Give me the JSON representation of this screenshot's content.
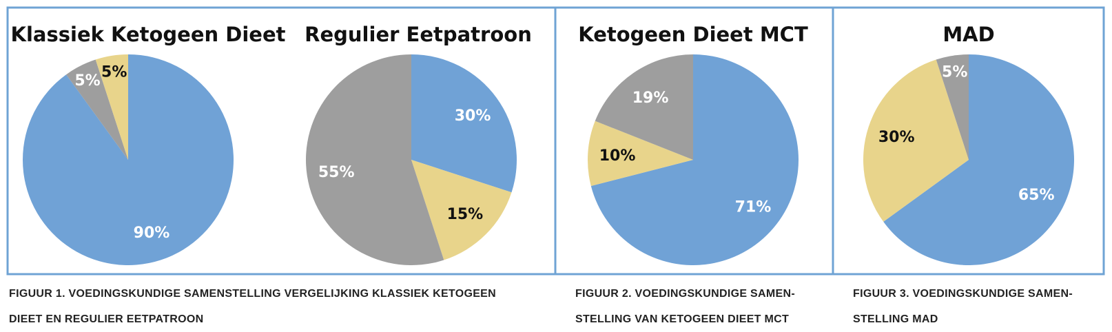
{
  "colors": {
    "blue": "#70a2d6",
    "yellow": "#e8d48b",
    "gray": "#9e9e9e",
    "border": "#6fa3d4",
    "label_light": "#ffffff",
    "label_dark": "#111111"
  },
  "chart_data": [
    {
      "type": "pie",
      "title": "Klassiek Ketogeen Dieet",
      "slices": [
        {
          "value": 90,
          "label": "90%",
          "color": "#70a2d6",
          "label_color": "#ffffff"
        },
        {
          "value": 5,
          "label": "5%",
          "color": "#9e9e9e",
          "label_color": "#ffffff"
        },
        {
          "value": 5,
          "label": "5%",
          "color": "#e8d48b",
          "label_color": "#111111"
        }
      ]
    },
    {
      "type": "pie",
      "title": "Regulier Eetpatroon",
      "slices": [
        {
          "value": 30,
          "label": "30%",
          "color": "#70a2d6",
          "label_color": "#ffffff"
        },
        {
          "value": 15,
          "label": "15%",
          "color": "#e8d48b",
          "label_color": "#111111"
        },
        {
          "value": 55,
          "label": "55%",
          "color": "#9e9e9e",
          "label_color": "#ffffff"
        }
      ]
    },
    {
      "type": "pie",
      "title": "Ketogeen Dieet MCT",
      "slices": [
        {
          "value": 71,
          "label": "71%",
          "color": "#70a2d6",
          "label_color": "#ffffff"
        },
        {
          "value": 10,
          "label": "10%",
          "color": "#e8d48b",
          "label_color": "#111111"
        },
        {
          "value": 19,
          "label": "19%",
          "color": "#9e9e9e",
          "label_color": "#ffffff"
        }
      ]
    },
    {
      "type": "pie",
      "title": "MAD",
      "slices": [
        {
          "value": 65,
          "label": "65%",
          "color": "#70a2d6",
          "label_color": "#ffffff"
        },
        {
          "value": 30,
          "label": "30%",
          "color": "#e8d48b",
          "label_color": "#111111"
        },
        {
          "value": 5,
          "label": "5%",
          "color": "#9e9e9e",
          "label_color": "#ffffff"
        }
      ]
    }
  ],
  "captions": {
    "fig1": {
      "line1": "FIGUUR 1. VOEDINGSKUNDIGE SAMENSTELLING VERGELIJKING KLASSIEK KETOGEEN",
      "line2": "DIEET EN REGULIER EETPATROON"
    },
    "fig2": {
      "line1": "FIGUUR 2. VOEDINGSKUNDIGE SAMEN-",
      "line2": "STELLING VAN KETOGEEN DIEET MCT"
    },
    "fig3": {
      "line1": "FIGUUR 3. VOEDINGSKUNDIGE SAMEN-",
      "line2": "STELLING MAD"
    }
  }
}
